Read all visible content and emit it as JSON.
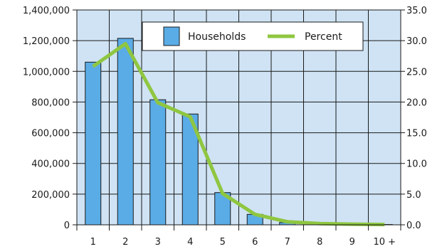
{
  "chart_data": {
    "type": "bar",
    "categories": [
      "1",
      "2",
      "3",
      "4",
      "5",
      "6",
      "7",
      "8",
      "9",
      "10 +"
    ],
    "series": [
      {
        "name": "Households",
        "type": "bar",
        "axis": "left",
        "values": [
          1060000,
          1215000,
          815000,
          722000,
          210000,
          68000,
          15000,
          5000,
          3000,
          2000
        ],
        "color": "#5aace6"
      },
      {
        "name": "Percent",
        "type": "line",
        "axis": "right",
        "values": [
          25.8,
          29.5,
          19.9,
          17.6,
          5.1,
          1.7,
          0.5,
          0.2,
          0.1,
          0.05
        ],
        "color": "#8fc640"
      }
    ],
    "y_left": {
      "min": 0,
      "max": 1400000,
      "ticks": [
        "0",
        "200,000",
        "400,000",
        "600,000",
        "800,000",
        "1,000,000",
        "1,200,000",
        "1,400,000"
      ]
    },
    "y_right": {
      "min": 0,
      "max": 35,
      "ticks": [
        "0.0",
        "5.0",
        "10.0",
        "15.0",
        "20.0",
        "25.0",
        "30.0",
        "35.0"
      ]
    },
    "grid": true,
    "legend_position": "top-right",
    "colors": {
      "plot_background": "#cfe3f4",
      "grid": "#1a1a1a",
      "bar_stroke": "#1a1a1a"
    }
  }
}
